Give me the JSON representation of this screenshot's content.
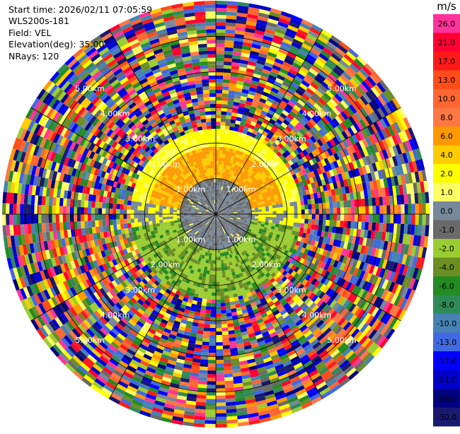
{
  "header": {
    "start_time": "Start time: 2026/02/11 07:05:59",
    "instrument": "WLS200s-181",
    "field": "Field: VEL",
    "elevation": "Elevation(deg): 35.00",
    "nrays": "NRays: 120"
  },
  "colorbar": {
    "unit": "m/s",
    "levels": [
      {
        "label": "26.0",
        "color": "#ff3399"
      },
      {
        "label": "21.0",
        "color": "#ff0033"
      },
      {
        "label": "17.0",
        "color": "#ff1a1a"
      },
      {
        "label": "13.0",
        "color": "#ff4d1a"
      },
      {
        "label": "10.0",
        "color": "#ff6633"
      },
      {
        "label": "8.0",
        "color": "#ff7744"
      },
      {
        "label": "6.0",
        "color": "#ff9900"
      },
      {
        "label": "4.0",
        "color": "#ffcc00"
      },
      {
        "label": "2.0",
        "color": "#ffff00"
      },
      {
        "label": "1.0",
        "color": "#ffff66"
      },
      {
        "label": "0.0",
        "color": "#778899"
      },
      {
        "label": "-1.0",
        "color": "#696969"
      },
      {
        "label": "-2.0",
        "color": "#9acd32"
      },
      {
        "label": "-4.0",
        "color": "#6b8e23"
      },
      {
        "label": "-6.0",
        "color": "#228b22"
      },
      {
        "label": "-8.0",
        "color": "#2e8b57"
      },
      {
        "label": "-10.0",
        "color": "#4682b4"
      },
      {
        "label": "-13.0",
        "color": "#4169e1"
      },
      {
        "label": "-17.0",
        "color": "#0000ff"
      },
      {
        "label": "-21.0",
        "color": "#0000cd"
      },
      {
        "label": "-26.0",
        "color": "#000080"
      },
      {
        "label": "-30.0",
        "color": "#191970"
      }
    ]
  },
  "chart_data": {
    "type": "heatmap",
    "projection": "polar PPI",
    "field": "VEL",
    "elevation_deg": 35.0,
    "n_rays": 120,
    "range_rings_km": [
      1.0,
      2.0,
      3.0,
      4.0,
      5.0
    ],
    "ring_labels": [
      "1.00km",
      "2.00km",
      "3.00km",
      "4.00km",
      "5.00km"
    ],
    "max_range_km": 6.0,
    "spoke_step_deg": 30,
    "grid": true
  }
}
